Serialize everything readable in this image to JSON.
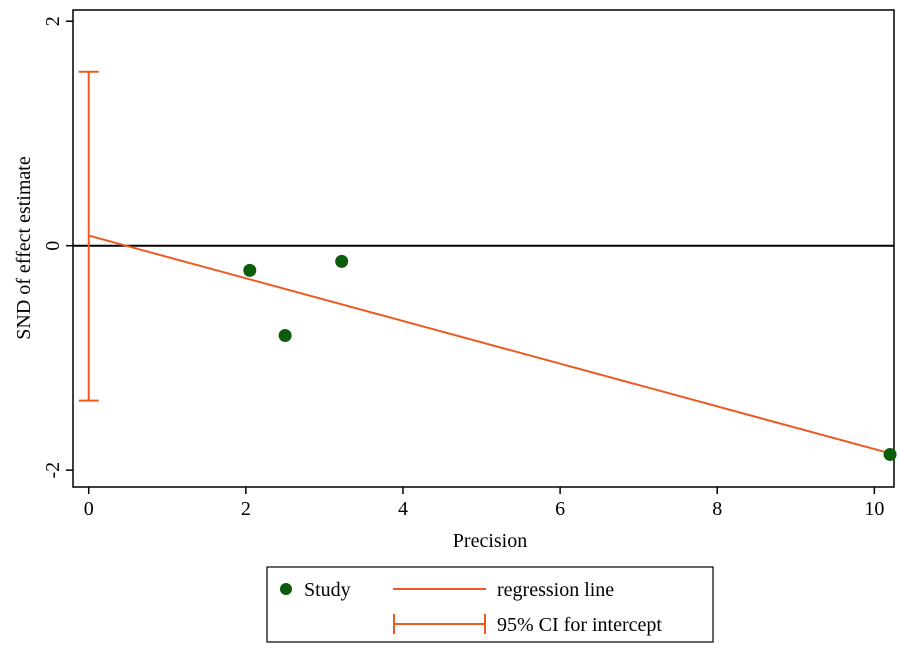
{
  "chart_data": {
    "type": "scatter",
    "xlabel": "Precision",
    "ylabel": "SND of effect estimate",
    "xlim": [
      -0.2,
      10.25
    ],
    "ylim": [
      -2.15,
      2.1
    ],
    "xticks": [
      {
        "value": 0,
        "label": "0"
      },
      {
        "value": 2,
        "label": "2"
      },
      {
        "value": 4,
        "label": "4"
      },
      {
        "value": 6,
        "label": "6"
      },
      {
        "value": 8,
        "label": "8"
      },
      {
        "value": 10,
        "label": "10"
      }
    ],
    "yticks": [
      {
        "value": -2,
        "label": "-2"
      },
      {
        "value": 0,
        "label": "0"
      },
      {
        "value": 2,
        "label": "2"
      }
    ],
    "points": [
      {
        "x": 2.05,
        "y": -0.22
      },
      {
        "x": 2.5,
        "y": -0.8
      },
      {
        "x": 3.22,
        "y": -0.14
      },
      {
        "x": 10.2,
        "y": -1.86
      }
    ],
    "regression_line": {
      "x": [
        0,
        10.2
      ],
      "y": [
        0.09,
        -1.85
      ]
    },
    "intercept_ci": {
      "x": 0,
      "low": -1.38,
      "high": 1.55
    },
    "reference_line_y": 0,
    "grid": false,
    "legend": {
      "position": "bottom",
      "entries": [
        {
          "key": "study",
          "label": "Study"
        },
        {
          "key": "regression",
          "label": "regression line"
        },
        {
          "key": "ci",
          "label": "95% CI for intercept"
        }
      ]
    },
    "colors": {
      "points": "#0b5d0b",
      "regression": "#ee5a24",
      "ci": "#ee5a24",
      "axes": "#000000"
    }
  }
}
